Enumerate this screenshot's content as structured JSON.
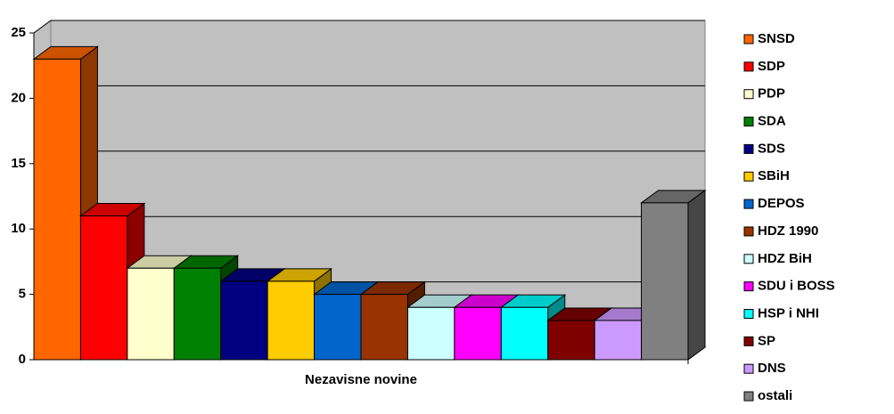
{
  "chart_data": {
    "type": "bar",
    "categories": [
      "Nezavisne novine"
    ],
    "series": [
      {
        "name": "SNSD",
        "color": "#FF6600",
        "values": [
          23
        ]
      },
      {
        "name": "SDP",
        "color": "#FF0000",
        "values": [
          11
        ]
      },
      {
        "name": "PDP",
        "color": "#FFFFCC",
        "values": [
          7
        ]
      },
      {
        "name": "SDA",
        "color": "#008000",
        "values": [
          7
        ]
      },
      {
        "name": "SDS",
        "color": "#000080",
        "values": [
          6
        ]
      },
      {
        "name": "SBiH",
        "color": "#FFCC00",
        "values": [
          6
        ]
      },
      {
        "name": "DEPOS",
        "color": "#0066CC",
        "values": [
          5
        ]
      },
      {
        "name": "HDZ 1990",
        "color": "#993300",
        "values": [
          5
        ]
      },
      {
        "name": "HDZ BiH",
        "color": "#CCFFFF",
        "values": [
          4
        ]
      },
      {
        "name": "SDU i BOSS",
        "color": "#FF00FF",
        "values": [
          4
        ]
      },
      {
        "name": "HSP i NHI",
        "color": "#00FFFF",
        "values": [
          4
        ]
      },
      {
        "name": "SP",
        "color": "#800000",
        "values": [
          3
        ]
      },
      {
        "name": "DNS",
        "color": "#CC99FF",
        "values": [
          3
        ]
      },
      {
        "name": "ostali",
        "color": "#808080",
        "values": [
          12
        ]
      }
    ],
    "ylim": [
      0,
      25
    ],
    "yticks": [
      0,
      5,
      10,
      15,
      20,
      25
    ],
    "grid": true,
    "legend": "right"
  }
}
